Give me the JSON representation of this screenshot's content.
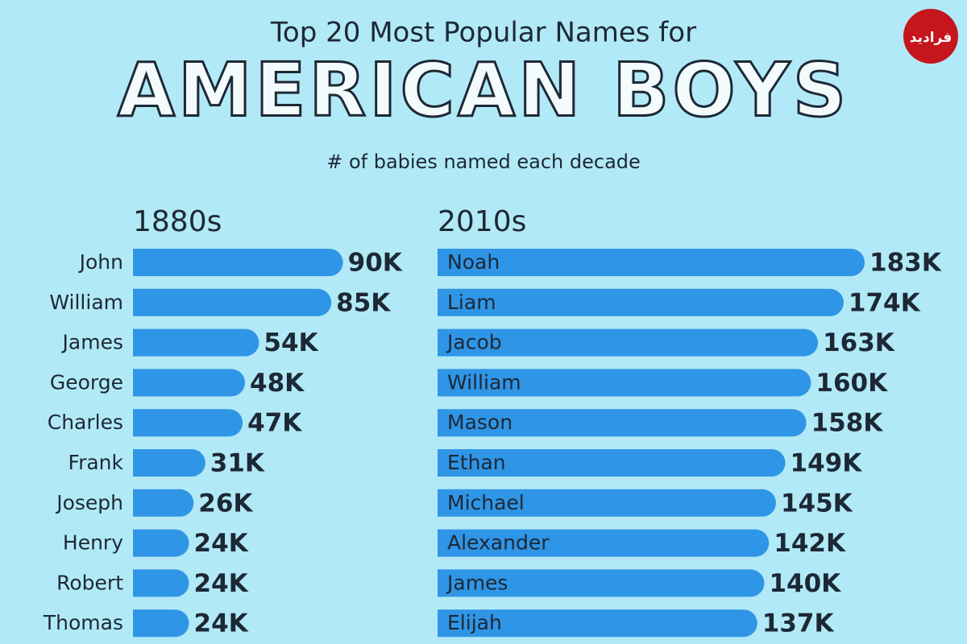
{
  "header": {
    "title": "Top 20 Most Popular Names for",
    "heading": "AMERICAN BOYS",
    "subtitle": "# of babies named each decade",
    "logo": "فرادید"
  },
  "chart_data": [
    {
      "type": "bar",
      "orientation": "horizontal",
      "title": "1880s",
      "color": "#2f95e6",
      "label_position": "outside",
      "categories": [
        "John",
        "William",
        "James",
        "George",
        "Charles",
        "Frank",
        "Joseph",
        "Henry",
        "Robert",
        "Thomas"
      ],
      "values": [
        90000,
        85000,
        54000,
        48000,
        47000,
        31000,
        26000,
        24000,
        24000,
        24000
      ],
      "value_labels": [
        "90K",
        "85K",
        "54K",
        "48K",
        "47K",
        "31K",
        "26K",
        "24K",
        "24K",
        "24K"
      ]
    },
    {
      "type": "bar",
      "orientation": "horizontal",
      "title": "2010s",
      "color": "#2f95e6",
      "label_position": "inside",
      "categories": [
        "Noah",
        "Liam",
        "Jacob",
        "William",
        "Mason",
        "Ethan",
        "Michael",
        "Alexander",
        "James",
        "Elijah"
      ],
      "values": [
        183000,
        174000,
        163000,
        160000,
        158000,
        149000,
        145000,
        142000,
        140000,
        137000
      ],
      "value_labels": [
        "183K",
        "174K",
        "163K",
        "160K",
        "158K",
        "149K",
        "145K",
        "142K",
        "140K",
        "137K"
      ]
    }
  ]
}
